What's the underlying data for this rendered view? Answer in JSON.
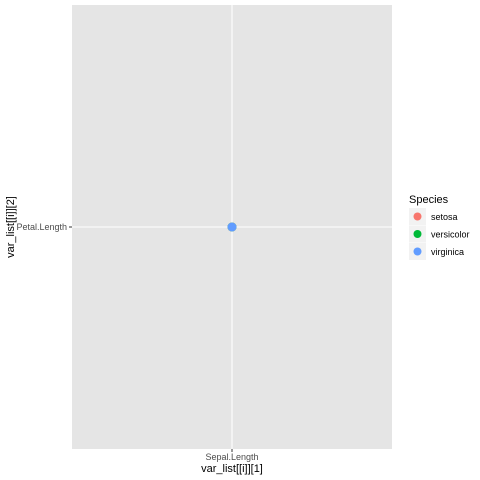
{
  "chart_data": {
    "type": "scatter",
    "x_type": "categorical",
    "y_type": "categorical",
    "x_categories": [
      "Sepal.Length"
    ],
    "y_categories": [
      "Petal.Length"
    ],
    "xlabel": "var_list[[i]][1]",
    "ylabel": "var_list[[i]][2]",
    "grid": true,
    "panel_background": "#e5e5e5",
    "legend": {
      "title": "Species",
      "placement": "right",
      "entries": [
        {
          "label": "setosa",
          "color": "#f8766d"
        },
        {
          "label": "versicolor",
          "color": "#00ba38"
        },
        {
          "label": "virginica",
          "color": "#619cff"
        }
      ]
    },
    "points": [
      {
        "x": "Sepal.Length",
        "y": "Petal.Length",
        "species": "setosa",
        "color": "#f8766d"
      },
      {
        "x": "Sepal.Length",
        "y": "Petal.Length",
        "species": "versicolor",
        "color": "#00ba38"
      },
      {
        "x": "Sepal.Length",
        "y": "Petal.Length",
        "species": "virginica",
        "color": "#619cff"
      }
    ]
  }
}
